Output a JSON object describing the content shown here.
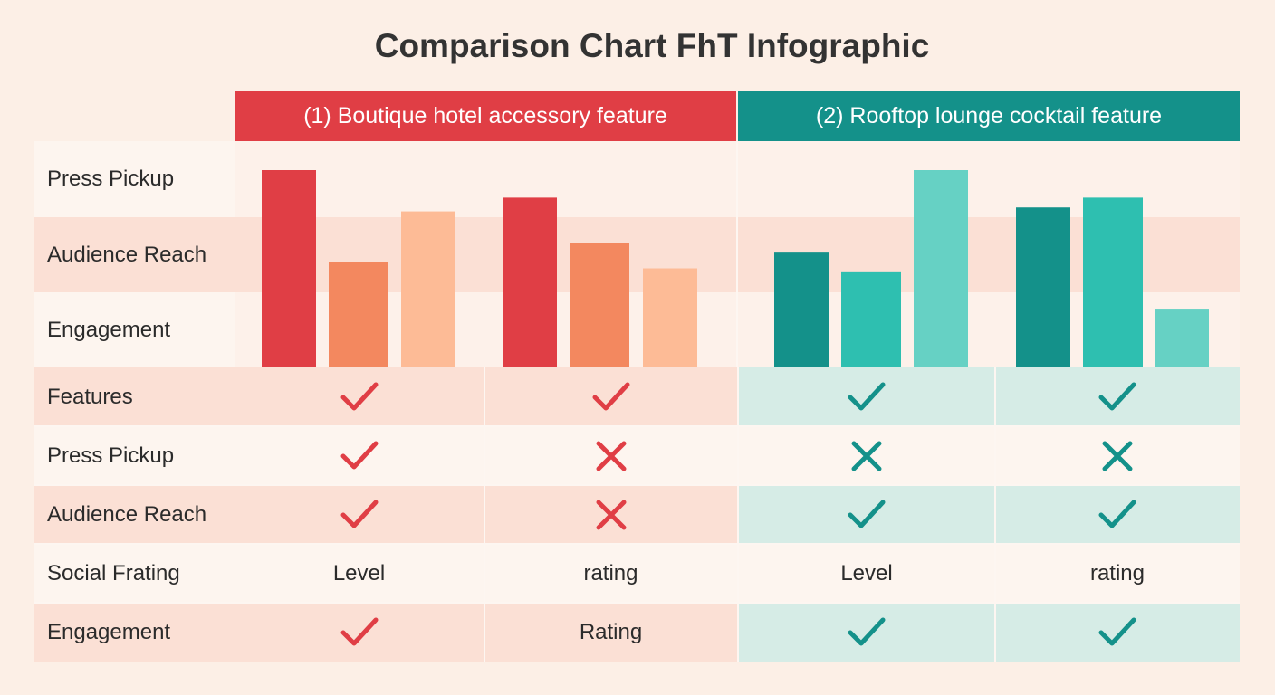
{
  "title": "Comparison Chart FhT Infographic",
  "colors": {
    "red": "#e03e45",
    "orange": "#f3885f",
    "peach": "#fdbb96",
    "teal_dark": "#14918a",
    "teal_mid": "#2ebfb0",
    "teal_light": "#66d1c4"
  },
  "columns": [
    {
      "label": "(1) Boutique hotel accessory feature"
    },
    {
      "label": "(2) Rooftop lounge cocktail feature"
    }
  ],
  "chart_rows": [
    "Press Pickup",
    "Audience Reach",
    "Engagement"
  ],
  "chart_data": {
    "type": "bar",
    "ylim": [
      0,
      100
    ],
    "groups": [
      {
        "values": [
          100,
          53,
          79
        ],
        "colors": [
          "#e03e45",
          "#f3885f",
          "#fdbb96"
        ]
      },
      {
        "values": [
          86,
          63,
          50
        ],
        "colors": [
          "#e03e45",
          "#f3885f",
          "#fdbb96"
        ]
      },
      {
        "values": [
          58,
          48,
          100
        ],
        "colors": [
          "#14918a",
          "#2ebfb0",
          "#66d1c4"
        ]
      },
      {
        "values": [
          81,
          86,
          29
        ],
        "colors": [
          "#14918a",
          "#2ebfb0",
          "#66d1c4"
        ]
      }
    ]
  },
  "table": {
    "rows": [
      {
        "label": "Features",
        "cells": [
          "check-icon",
          "check-icon",
          "check-icon",
          "check-icon"
        ]
      },
      {
        "label": "Press Pickup",
        "cells": [
          "check-icon",
          "cross-icon",
          "cross-icon",
          "cross-icon"
        ]
      },
      {
        "label": "Audience Reach",
        "cells": [
          "check-icon",
          "cross-icon",
          "check-icon",
          "check-icon"
        ]
      },
      {
        "label": "Social Frating",
        "cells": [
          "Level",
          "rating",
          "Level",
          "rating"
        ]
      },
      {
        "label": "Engagement",
        "cells": [
          "check-icon",
          "Rating",
          "check-icon",
          "check-icon"
        ]
      }
    ]
  }
}
